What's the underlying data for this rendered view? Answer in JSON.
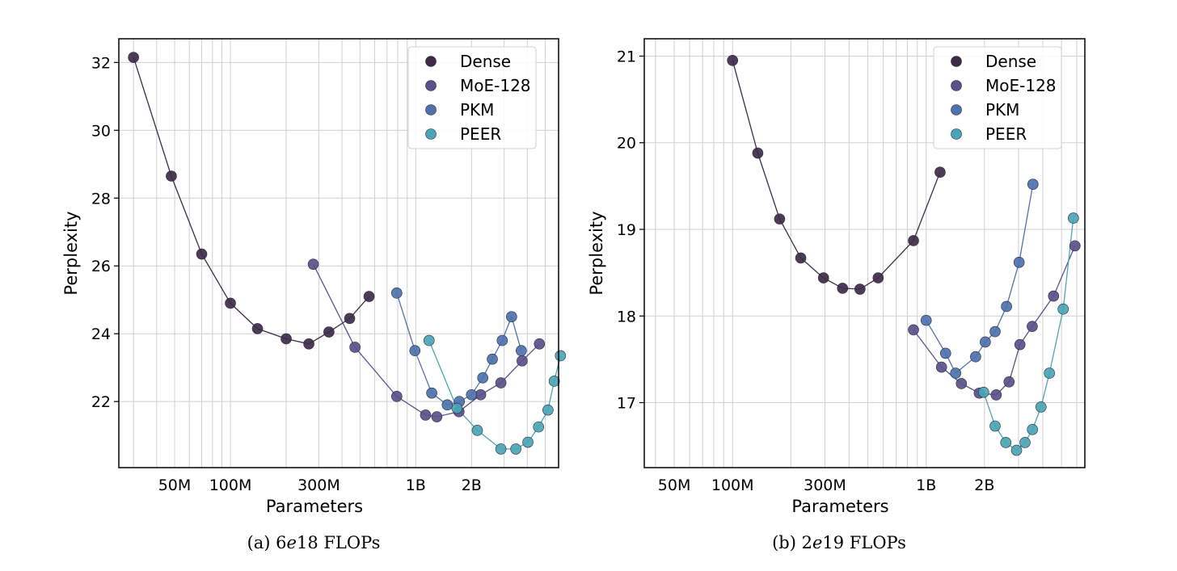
{
  "chart_data": [
    {
      "type": "scatter",
      "caption": "(a) 6e18 FLOPs",
      "caption_prefix": "(a) 6",
      "caption_exp": "e",
      "caption_suffix": "18 FLOPs",
      "xlabel": "Parameters",
      "ylabel": "Perplexity",
      "xscale": "log",
      "xlim": [
        25,
        5900
      ],
      "ylim": [
        20.05,
        32.7
      ],
      "xticks": [
        {
          "value": 50,
          "label": "50M"
        },
        {
          "value": 100,
          "label": "100M"
        },
        {
          "value": 300,
          "label": "300M"
        },
        {
          "value": 1000,
          "label": "1B"
        },
        {
          "value": 2000,
          "label": "2B"
        }
      ],
      "yticks": [
        22,
        24,
        26,
        28,
        30,
        32
      ],
      "grid": true,
      "legend_position": "top-right",
      "series": [
        {
          "name": "Dense",
          "color": "#3d2b46",
          "x": [
            30,
            48,
            70,
            100,
            140,
            200,
            265,
            340,
            440,
            560
          ],
          "y": [
            32.15,
            28.65,
            26.35,
            24.9,
            24.15,
            23.85,
            23.7,
            24.05,
            24.45,
            25.1
          ]
        },
        {
          "name": "MoE-128",
          "color": "#5a508a",
          "x": [
            280,
            470,
            790,
            1130,
            1300,
            1710,
            2240,
            2880,
            3750,
            4650
          ],
          "y": [
            26.05,
            23.6,
            22.15,
            21.6,
            21.55,
            21.7,
            22.2,
            22.55,
            23.2,
            23.7
          ]
        },
        {
          "name": "PKM",
          "color": "#4d72ae",
          "x": [
            790,
            990,
            1220,
            1480,
            1720,
            2000,
            2300,
            2590,
            2930,
            3290,
            3710
          ],
          "y": [
            25.2,
            23.5,
            22.25,
            21.9,
            22.0,
            22.2,
            22.7,
            23.25,
            23.8,
            24.5,
            23.5
          ]
        },
        {
          "name": "PEER",
          "color": "#4aa5b6",
          "x": [
            1180,
            1670,
            2150,
            2880,
            3470,
            4030,
            4600,
            5170,
            5590
          ],
          "y": [
            23.8,
            21.8,
            21.15,
            20.6,
            20.6,
            20.8,
            21.25,
            21.75,
            22.6
          ]
        }
      ],
      "series_extra_points": {
        "PEER_end": 23.35
      }
    },
    {
      "type": "scatter",
      "caption": "(b) 2e19 FLOPs",
      "caption_prefix": "(b) 2",
      "caption_exp": "e",
      "caption_suffix": "19 FLOPs",
      "xlabel": "Parameters",
      "ylabel": "Perplexity",
      "xscale": "log",
      "xlim": [
        35,
        6600
      ],
      "ylim": [
        16.25,
        21.2
      ],
      "xticks": [
        {
          "value": 50,
          "label": "50M"
        },
        {
          "value": 100,
          "label": "100M"
        },
        {
          "value": 300,
          "label": "300M"
        },
        {
          "value": 1000,
          "label": "1B"
        },
        {
          "value": 2000,
          "label": "2B"
        }
      ],
      "yticks": [
        17,
        18,
        19,
        20,
        21
      ],
      "grid": true,
      "legend_position": "top-right",
      "series": [
        {
          "name": "Dense",
          "color": "#3d2b46",
          "x": [
            100,
            135,
            175,
            225,
            295,
            370,
            455,
            565,
            860,
            1180
          ],
          "y": [
            20.95,
            19.88,
            19.12,
            18.67,
            18.44,
            18.32,
            18.31,
            18.44,
            18.87,
            19.66
          ]
        },
        {
          "name": "MoE-128",
          "color": "#5a508a",
          "x": [
            860,
            1200,
            1520,
            1880,
            2300,
            2680,
            3050,
            3530,
            4550,
            5870
          ],
          "y": [
            17.84,
            17.41,
            17.22,
            17.11,
            17.09,
            17.24,
            17.67,
            17.88,
            18.23,
            18.81
          ]
        },
        {
          "name": "PKM",
          "color": "#4d72ae",
          "x": [
            1000,
            1260,
            1420,
            1800,
            2020,
            2270,
            2600,
            3020,
            3560
          ],
          "y": [
            17.95,
            17.57,
            17.34,
            17.53,
            17.7,
            17.82,
            18.11,
            18.62,
            19.52
          ]
        },
        {
          "name": "PEER",
          "color": "#4aa5b6",
          "x": [
            1980,
            2270,
            2580,
            2930,
            3240,
            3540,
            3920,
            4330,
            5100,
            5760
          ],
          "y": [
            17.12,
            16.73,
            16.54,
            16.45,
            16.54,
            16.69,
            16.95,
            17.34,
            18.08,
            19.13
          ]
        }
      ]
    }
  ]
}
